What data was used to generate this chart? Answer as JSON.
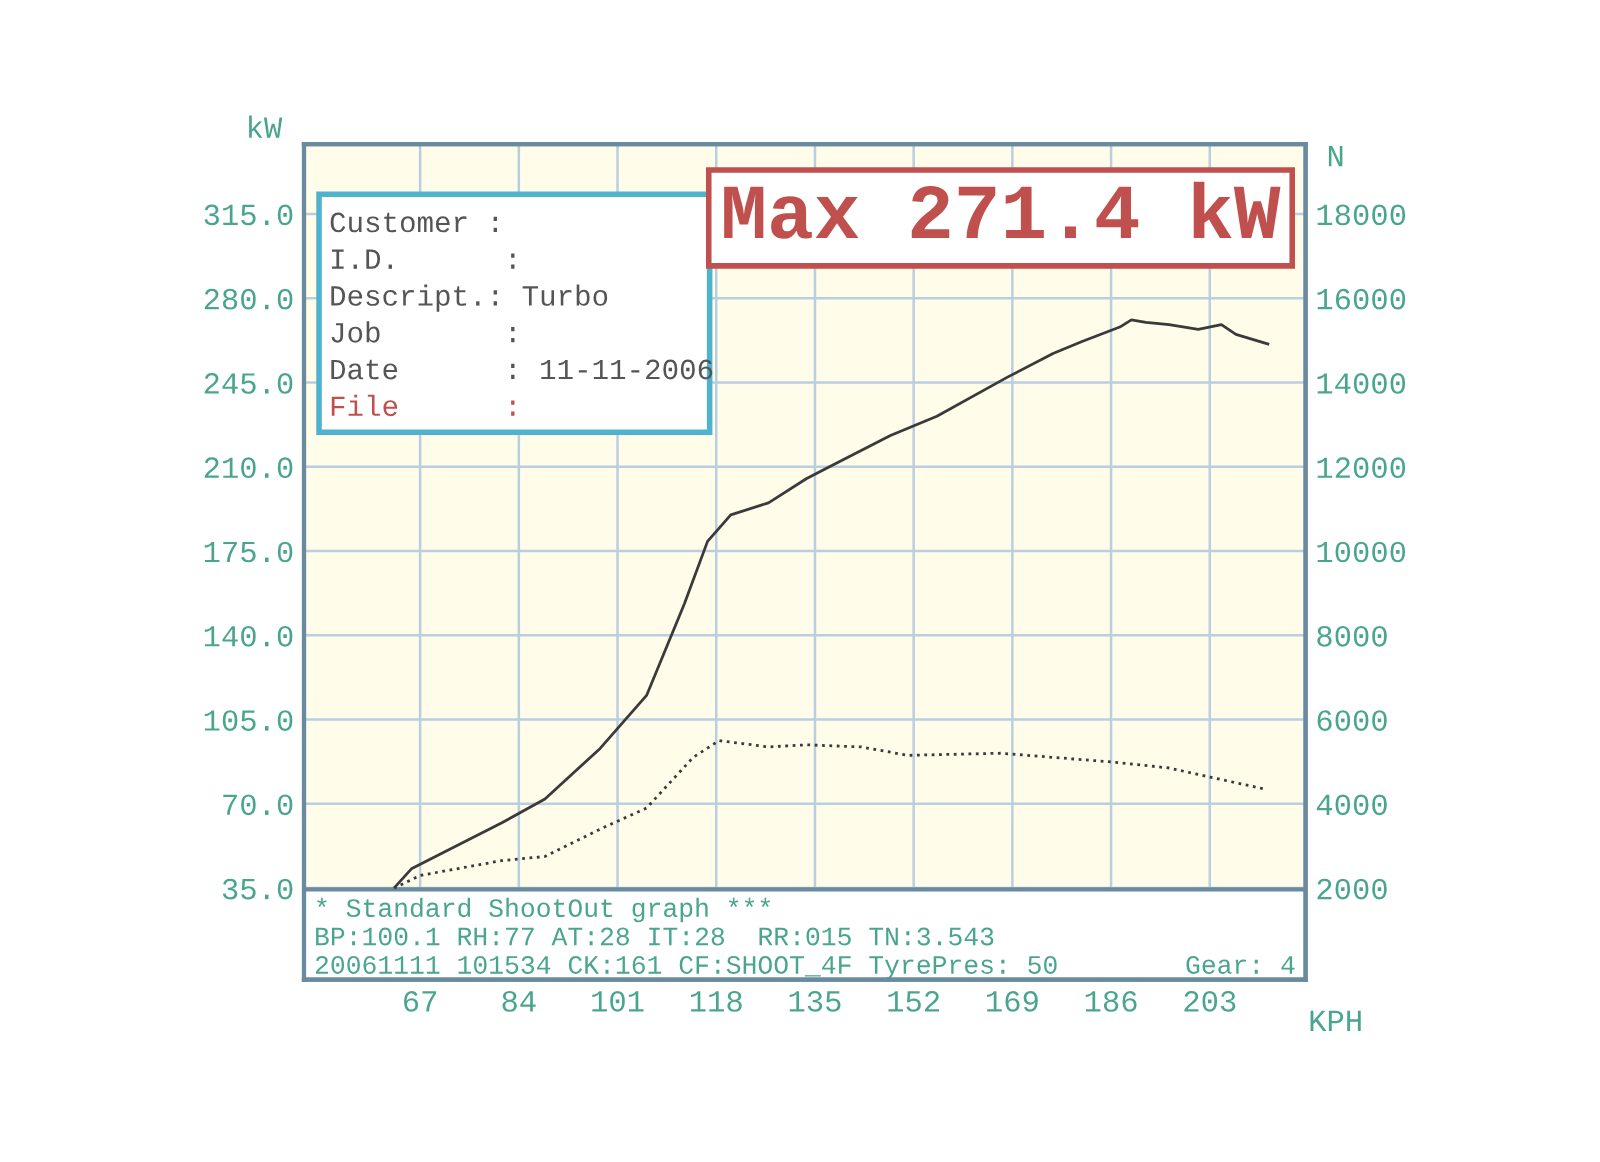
{
  "chart_data": {
    "type": "line",
    "xlabel": "KPH",
    "ylabel": "kW",
    "y2label": "N",
    "xlim": [
      47,
      219.5
    ],
    "xticks": [
      67,
      84,
      101,
      118,
      135,
      152,
      169,
      186,
      203
    ],
    "ylim": [
      -3,
      344
    ],
    "yticks": [
      {
        "value": 35,
        "label": "35.0"
      },
      {
        "value": 70,
        "label": "70.0"
      },
      {
        "value": 105,
        "label": "105.0"
      },
      {
        "value": 140,
        "label": "140.0"
      },
      {
        "value": 175,
        "label": "175.0"
      },
      {
        "value": 210,
        "label": "210.0"
      },
      {
        "value": 245,
        "label": "245.0"
      },
      {
        "value": 280,
        "label": "280.0"
      },
      {
        "value": 315,
        "label": "315.0"
      }
    ],
    "y2lim": [
      -171,
      19657
    ],
    "y2ticks": [
      2000,
      4000,
      6000,
      8000,
      10000,
      12000,
      14000,
      16000,
      18000
    ],
    "grid": true,
    "series": [
      {
        "color": "#3a3a3a",
        "line_style": "solid",
        "x": [
          62.5,
          65.5,
          81,
          88.5,
          98,
          106,
          112.5,
          116.5,
          120.5,
          127,
          133.5,
          137.5,
          148,
          156,
          168,
          176,
          181,
          187.5,
          189.5,
          192,
          196,
          201,
          205,
          207.5,
          213
        ],
        "values": [
          35,
          43,
          62,
          72,
          93,
          115,
          153,
          179,
          190,
          195,
          205,
          210,
          223,
          231,
          247,
          257,
          262,
          268,
          271,
          270,
          269,
          267,
          269,
          265,
          261
        ]
      },
      {
        "color": "#3a3a3a",
        "line_style": "dotted",
        "axis": "y2",
        "x": [
          62.5,
          67,
          81,
          88.5,
          98,
          106,
          114,
          118.5,
          127,
          133.5,
          143,
          151,
          167,
          185.5,
          196,
          202.5,
          212.5
        ],
        "values": [
          2000,
          2300,
          2650,
          2750,
          3400,
          3900,
          5100,
          5500,
          5350,
          5400,
          5350,
          5150,
          5200,
          5000,
          4850,
          4650,
          4350
        ]
      }
    ],
    "annotations": [
      "Max 271.4 kW",
      "Customer :",
      "I.D.      :",
      "Descript.: Turbo",
      "Job       :",
      "Date      : 11-11-2006",
      "File      :",
      "* Standard ShootOut graph ***",
      "BP:100.1 RH:77 AT:28 IT:28  RR:015 TN:3.543",
      "20061111 101534 CK:161 CF:SHOOT_4F TyrePres: 50        Gear: 4"
    ]
  }
}
